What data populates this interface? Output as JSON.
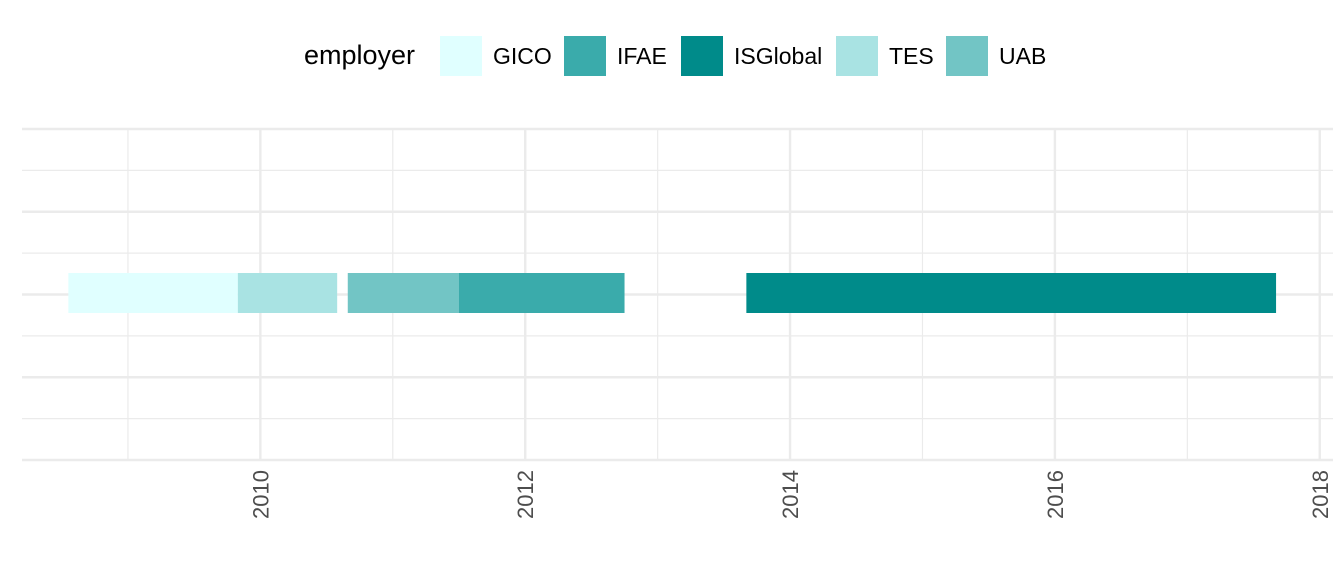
{
  "chart_data": {
    "type": "bar",
    "orientation": "horizontal-timeline",
    "title": "",
    "xlabel": "",
    "ylabel": "",
    "legend": {
      "title": "employer",
      "placement": "top"
    },
    "series": [
      {
        "name": "GICO",
        "color": "#E0FFFF"
      },
      {
        "name": "IFAE",
        "color": "#3AABAB"
      },
      {
        "name": "ISGlobal",
        "color": "#008B8A"
      },
      {
        "name": "TES",
        "color": "#A9E3E3"
      },
      {
        "name": "UAB",
        "color": "#72C5C5"
      }
    ],
    "segments": [
      {
        "employer": "GICO",
        "start": 2008.55,
        "end": 2009.83
      },
      {
        "employer": "TES",
        "start": 2009.83,
        "end": 2010.58
      },
      {
        "employer": "UAB",
        "start": 2010.66,
        "end": 2011.5
      },
      {
        "employer": "IFAE",
        "start": 2011.5,
        "end": 2012.75
      },
      {
        "employer": "ISGlobal",
        "start": 2013.67,
        "end": 2017.67
      }
    ],
    "x_ticks": [
      "2010",
      "2012",
      "2014",
      "2016",
      "2018"
    ],
    "x_tick_values": [
      2010,
      2012,
      2014,
      2016,
      2018
    ],
    "xlim": [
      2008.2,
      2018.1
    ],
    "grid": true
  }
}
